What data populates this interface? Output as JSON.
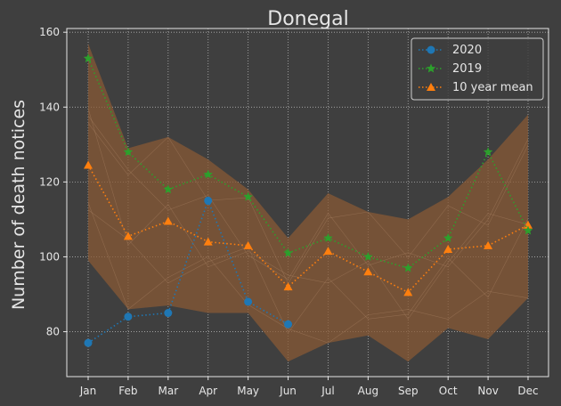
{
  "chart_data": {
    "type": "line",
    "title": "Donegal",
    "xlabel": "",
    "ylabel": "Number of death notices",
    "categories": [
      "Jan",
      "Feb",
      "Mar",
      "Apr",
      "May",
      "Jun",
      "Jul",
      "Aug",
      "Sep",
      "Oct",
      "Nov",
      "Dec"
    ],
    "ylim": [
      68,
      161
    ],
    "yticks": [
      80,
      100,
      120,
      140,
      160
    ],
    "grid": true,
    "legend_position": "top-right",
    "series": [
      {
        "name": "2020",
        "color": "#1f77b4",
        "marker": "circle",
        "values": [
          77,
          84,
          85,
          115,
          88,
          82,
          null,
          null,
          null,
          null,
          null,
          null
        ]
      },
      {
        "name": "2019",
        "color": "#2ca02c",
        "marker": "star",
        "values": [
          153,
          128,
          118,
          122,
          116,
          101,
          105,
          100,
          97,
          105,
          128,
          107
        ]
      },
      {
        "name": "10 year mean",
        "color": "#ff7f0e",
        "marker": "triangle",
        "values": [
          124.5,
          105.5,
          109.5,
          104,
          103,
          92,
          101.5,
          96,
          90.5,
          102,
          103,
          108.5
        ]
      }
    ],
    "range_band": {
      "color": "#8a5a35",
      "min": [
        99,
        86,
        87,
        85,
        85,
        72,
        77,
        79,
        72,
        81,
        78,
        89
      ],
      "max": [
        157,
        129,
        132,
        126,
        118,
        105,
        117,
        112,
        110,
        116,
        126,
        138
      ]
    }
  }
}
